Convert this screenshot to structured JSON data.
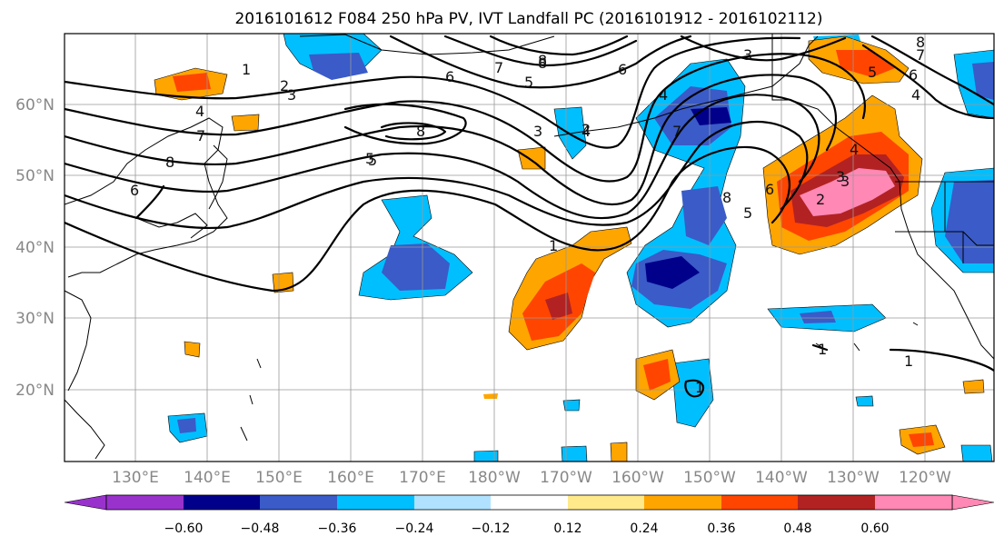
{
  "title": "2016101612 F084 250 hPa PV, IVT Landfall PC (2016101912 - 2016102112)",
  "lat_labels": [
    "60°N",
    "50°N",
    "40°N",
    "30°N",
    "20°N"
  ],
  "lon_labels": [
    "130°E",
    "140°E",
    "150°E",
    "160°E",
    "170°E",
    "180°W",
    "170°W",
    "160°W",
    "150°W",
    "140°W",
    "130°W",
    "120°W"
  ],
  "colorbar": {
    "tick_labels": [
      "−0.60",
      "−0.48",
      "−0.36",
      "−0.24",
      "−0.12",
      "0.12",
      "0.24",
      "0.36",
      "0.48",
      "0.60"
    ],
    "colors": [
      "#9932cc",
      "#00008b",
      "#3a5bc8",
      "#00bfff",
      "#b0e2ff",
      "#ffffff",
      "#ffe98a",
      "#ffa500",
      "#ff4500",
      "#b22222",
      "#ff88b4"
    ]
  },
  "contour_labels": [
    "1",
    "2",
    "3",
    "4",
    "8",
    "6",
    "7",
    "8",
    "6",
    "5",
    "3",
    "4",
    "7",
    "8",
    "5",
    "2",
    "6",
    "4",
    "8",
    "6",
    "3",
    "7",
    "5",
    "1",
    "8",
    "7",
    "3",
    "5",
    "4",
    "8",
    "6",
    "5",
    "2",
    "3",
    "4",
    "1",
    "1",
    "1"
  ],
  "map_style": {
    "background": "#ffffff",
    "contour_color": "#000000"
  }
}
